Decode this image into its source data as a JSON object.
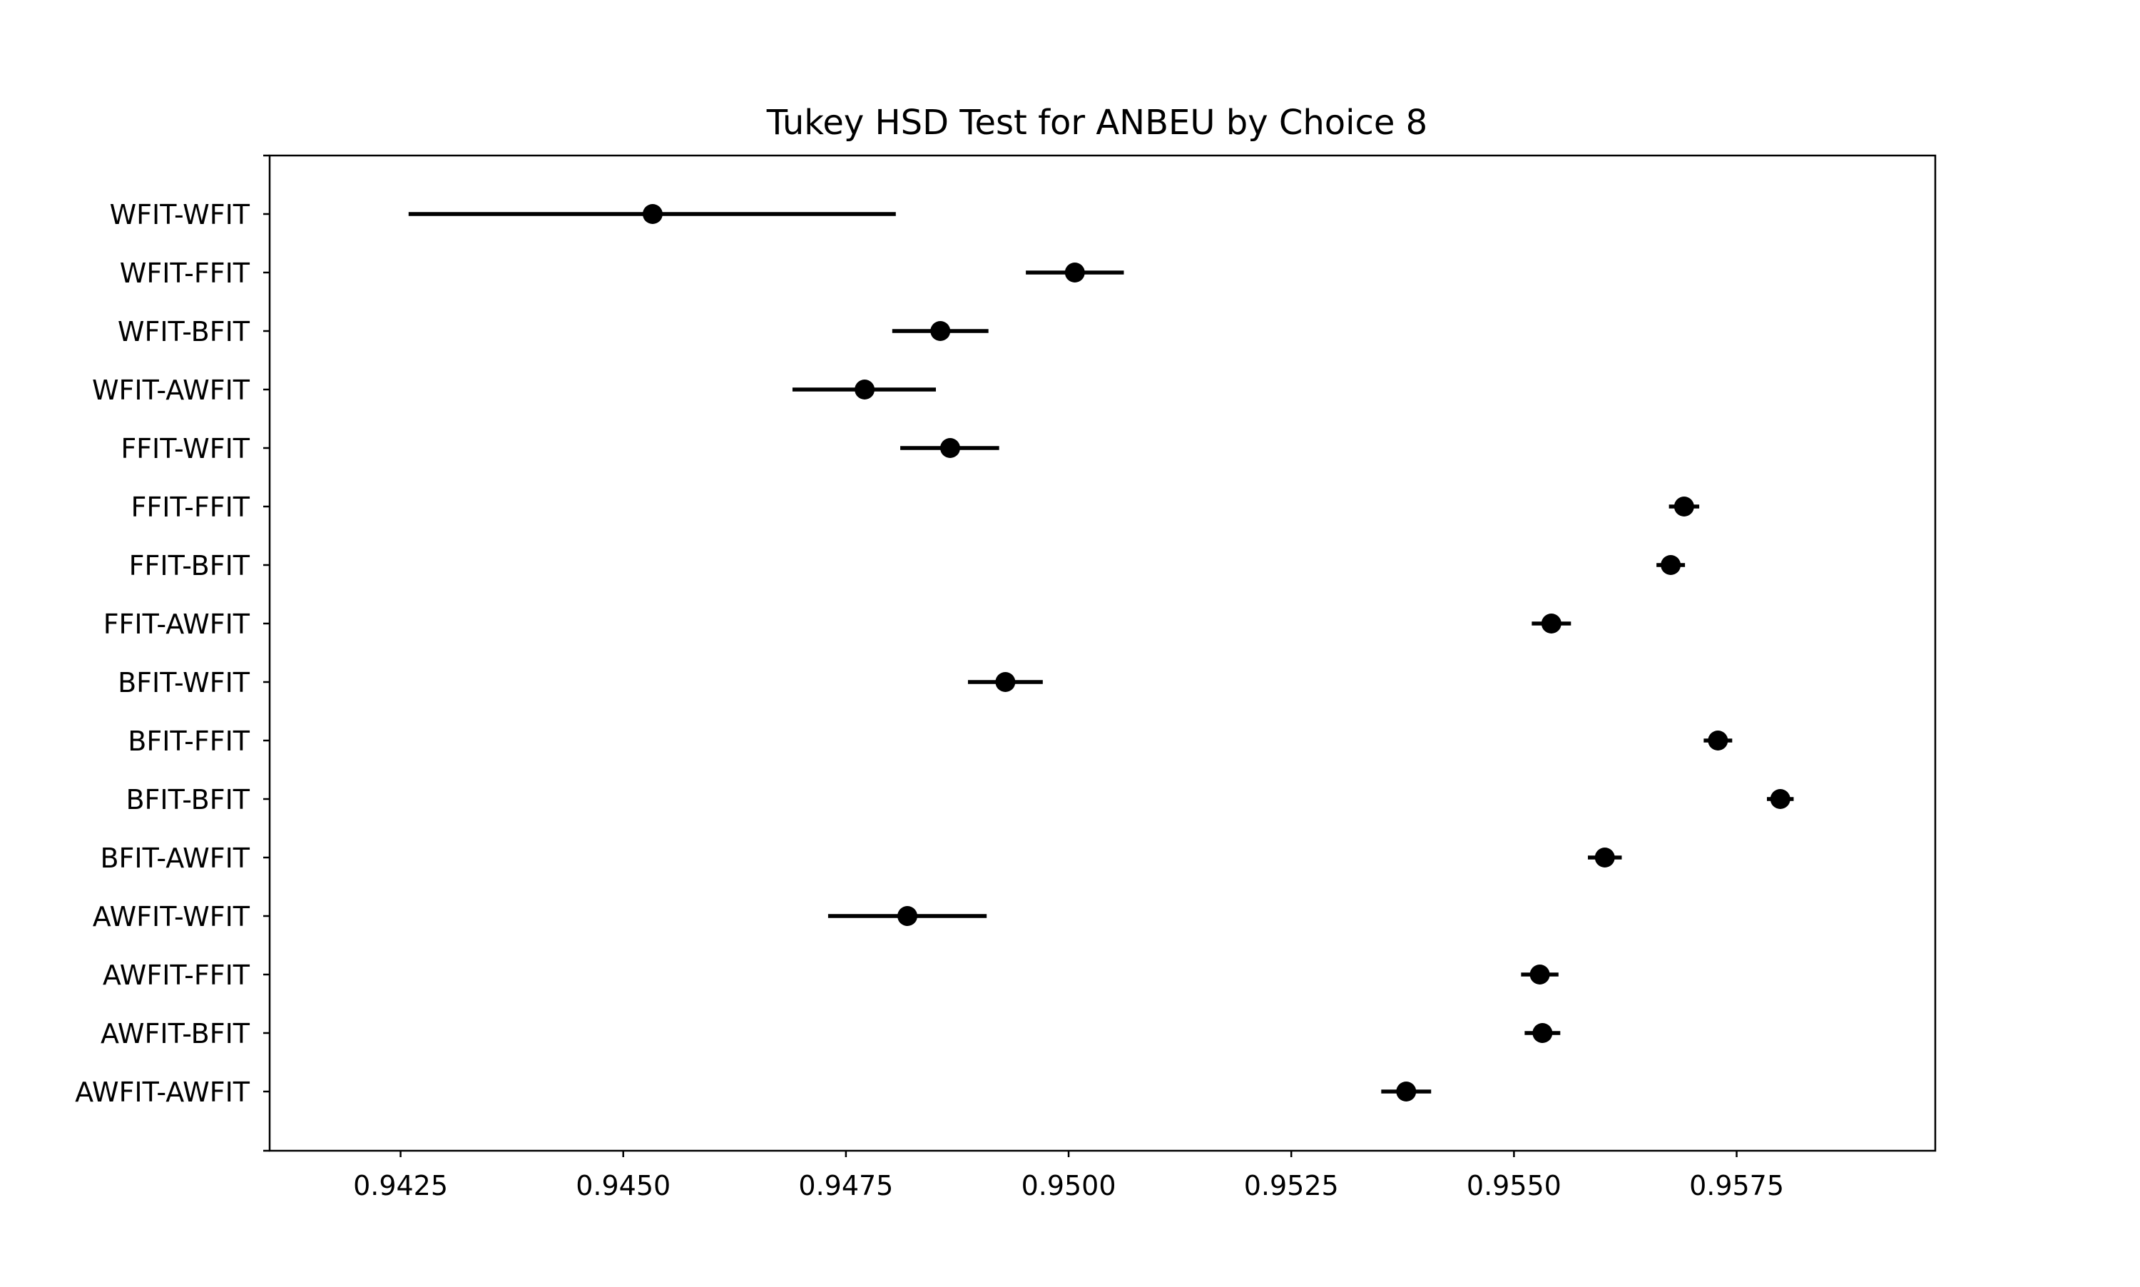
{
  "chart_data": {
    "type": "scatter",
    "subtype": "tukey-hsd-interval-plot",
    "title": "Tukey HSD Test for ANBEU by Choice 8",
    "xlabel": "",
    "ylabel": "",
    "xlim": [
      0.94103,
      0.95973
    ],
    "x_ticks": [
      "0.9425",
      "0.9450",
      "0.9475",
      "0.9500",
      "0.9525",
      "0.9550",
      "0.9575"
    ],
    "grid": false,
    "legend": "none",
    "marker_color": "#000000",
    "categories": [
      "WFIT-WFIT",
      "WFIT-FFIT",
      "WFIT-BFIT",
      "WFIT-AWFIT",
      "FFIT-WFIT",
      "FFIT-FFIT",
      "FFIT-BFIT",
      "FFIT-AWFIT",
      "BFIT-WFIT",
      "BFIT-FFIT",
      "BFIT-BFIT",
      "BFIT-AWFIT",
      "AWFIT-WFIT",
      "AWFIT-FFIT",
      "AWFIT-BFIT",
      "AWFIT-AWFIT"
    ],
    "means": [
      0.94533,
      0.95007,
      0.94856,
      0.94771,
      0.94867,
      0.95691,
      0.95676,
      0.95542,
      0.94929,
      0.95729,
      0.95799,
      0.95602,
      0.94819,
      0.95529,
      0.95532,
      0.95379
    ],
    "lower": [
      0.94259,
      0.94952,
      0.94802,
      0.9469,
      0.94811,
      0.95674,
      0.9566,
      0.9552,
      0.94887,
      0.95713,
      0.95784,
      0.95583,
      0.9473,
      0.95508,
      0.95512,
      0.95351
    ],
    "upper": [
      0.94806,
      0.95062,
      0.9491,
      0.94851,
      0.94922,
      0.95708,
      0.95692,
      0.95564,
      0.94971,
      0.95745,
      0.95814,
      0.95621,
      0.94908,
      0.9555,
      0.95552,
      0.95407
    ]
  }
}
